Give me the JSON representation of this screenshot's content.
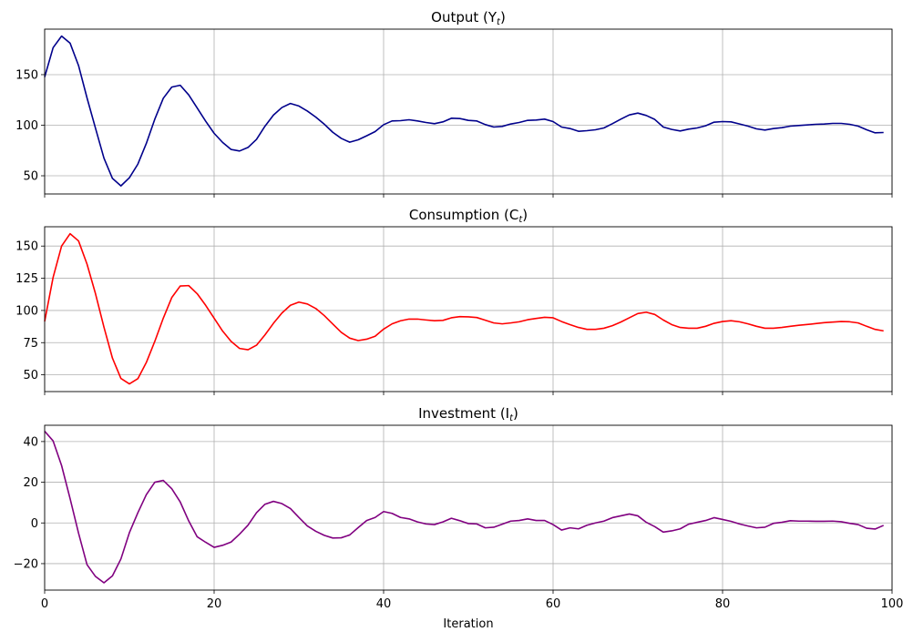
{
  "figure": {
    "xlabel": "Iteration",
    "x_ticks": [
      0,
      20,
      40,
      60,
      80,
      100
    ],
    "xlim": [
      0,
      100
    ],
    "grid": true
  },
  "panels": [
    {
      "key": "output",
      "title": "Output (Y",
      "title_sub": "t",
      "title_close": ")",
      "color": "#00008b",
      "ylim": [
        32,
        195
      ],
      "y_ticks": [
        50,
        100,
        150
      ]
    },
    {
      "key": "consumption",
      "title": "Consumption (C",
      "title_sub": "t",
      "title_close": ")",
      "color": "#ff0000",
      "ylim": [
        37,
        165
      ],
      "y_ticks": [
        50,
        75,
        100,
        125,
        150
      ]
    },
    {
      "key": "investment",
      "title": "Investment (I",
      "title_sub": "t",
      "title_close": ")",
      "color": "#800080",
      "ylim": [
        -33,
        48
      ],
      "y_ticks": [
        -20,
        0,
        20,
        40
      ]
    }
  ],
  "chart_data": [
    {
      "type": "line",
      "title": "Output (Y_t)",
      "xlabel": "",
      "ylabel": "",
      "xlim": [
        0,
        100
      ],
      "ylim": [
        32,
        195
      ],
      "grid": true,
      "series": [
        {
          "name": "Output",
          "color": "#00008b",
          "x_start": 0,
          "values": [
            147.6,
            176.7,
            188.1,
            181.2,
            159,
            127,
            97,
            67.4,
            47.4,
            40,
            48,
            61.5,
            82,
            106,
            126.6,
            137.7,
            139.5,
            130,
            117,
            104,
            92,
            83,
            76,
            74.5,
            78,
            86,
            99,
            110,
            117.5,
            121.5,
            119,
            114,
            108,
            101,
            93,
            87,
            83.2,
            85.6,
            89.5,
            93.7,
            100.5,
            104.2,
            104.5,
            105.4,
            104.2,
            102.7,
            101.5,
            103.3,
            106.9,
            106.6,
            104.8,
            104.2,
            100.6,
            98.2,
            98.8,
            101.2,
            102.7,
            104.8,
            105.1,
            106,
            103.6,
            98.2,
            96.7,
            94,
            94.6,
            95.5,
            97.3,
            101.5,
            106,
            110.2,
            112,
            109.6,
            105.7,
            98.2,
            95.8,
            94.3,
            96.1,
            97.3,
            99.4,
            103,
            103.6,
            103.3,
            101.2,
            99.1,
            96.4,
            95.2,
            96.7,
            97.6,
            99.1,
            99.7,
            100.3,
            100.9,
            101.2,
            101.8,
            101.8,
            100.9,
            99.1,
            95.5,
            92.5,
            92.8
          ]
        }
      ]
    },
    {
      "type": "line",
      "title": "Consumption (C_t)",
      "xlabel": "",
      "ylabel": "",
      "xlim": [
        0,
        100
      ],
      "ylim": [
        37,
        165
      ],
      "grid": true,
      "series": [
        {
          "name": "Consumption",
          "color": "#ff0000",
          "x_start": 0,
          "values": [
            91.5,
            125.7,
            150,
            159.6,
            154,
            136,
            113,
            87,
            63,
            47.2,
            43,
            47,
            59.6,
            76,
            94,
            110,
            119,
            119.3,
            113,
            104,
            94,
            84,
            76,
            70.5,
            69.5,
            73,
            81,
            90,
            98,
            104,
            106.5,
            105,
            101.5,
            96,
            89.5,
            83,
            78.5,
            76.6,
            77.7,
            80,
            85.5,
            89.6,
            92,
            93.3,
            93.3,
            92.6,
            92,
            92.3,
            94.3,
            95.2,
            95,
            94.5,
            92.4,
            90.3,
            89.6,
            90.3,
            91.2,
            92.8,
            93.8,
            94.7,
            94.3,
            91.4,
            89,
            86.8,
            85.3,
            85.3,
            86.2,
            88.2,
            91,
            94.3,
            97.6,
            98.6,
            96.9,
            92.6,
            89,
            86.8,
            86.2,
            86.2,
            87.7,
            90,
            91.4,
            92,
            91.2,
            89.6,
            87.7,
            86.2,
            86.2,
            86.8,
            87.7,
            88.5,
            89.1,
            89.8,
            90.5,
            91,
            91.4,
            91.2,
            90.3,
            87.7,
            85.3,
            84.1
          ]
        }
      ]
    },
    {
      "type": "line",
      "title": "Investment (I_t)",
      "xlabel": "Iteration",
      "ylabel": "",
      "xlim": [
        0,
        100
      ],
      "ylim": [
        -33,
        48
      ],
      "grid": true,
      "series": [
        {
          "name": "Investment",
          "color": "#800080",
          "x_start": 0,
          "values": [
            45.1,
            40.3,
            28.2,
            12,
            -5,
            -20.5,
            -26.3,
            -29.4,
            -26,
            -17.7,
            -4.8,
            5,
            13.9,
            20,
            20.9,
            16.8,
            10.3,
            1,
            -6.8,
            -9.5,
            -12,
            -11,
            -9.4,
            -5.5,
            -1.1,
            5,
            9.2,
            10.6,
            9.5,
            7.1,
            2.7,
            -1.5,
            -4.1,
            -6.1,
            -7.4,
            -7.3,
            -5.9,
            -2.3,
            1.2,
            2.7,
            5.6,
            4.7,
            2.7,
            2,
            0.5,
            -0.5,
            -0.8,
            0.5,
            2.3,
            1.1,
            -0.3,
            -0.5,
            -2.4,
            -2.1,
            -0.6,
            0.9,
            1.2,
            2,
            1.2,
            1.2,
            -0.8,
            -3.5,
            -2.4,
            -2.9,
            -1.1,
            0,
            0.9,
            2.6,
            3.5,
            4.4,
            3.5,
            0.3,
            -1.8,
            -4.5,
            -3.9,
            -2.9,
            -0.6,
            0.3,
            1.2,
            2.6,
            1.7,
            0.8,
            -0.5,
            -1.5,
            -2.4,
            -2.1,
            -0.2,
            0.3,
            1.1,
            0.9,
            0.9,
            0.8,
            0.8,
            0.9,
            0.6,
            -0.2,
            -0.8,
            -2.6,
            -3,
            -1.2
          ]
        }
      ]
    }
  ]
}
